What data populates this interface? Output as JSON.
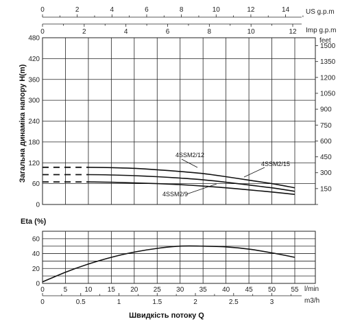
{
  "chart_data": [
    {
      "type": "line",
      "ylabel": "Загальна динаміка напору H(m)",
      "xlabel": "Швидкість потоку Q",
      "ylim": [
        0,
        480
      ],
      "yticks": [
        "0",
        "60",
        "120",
        "180",
        "240",
        "300",
        "360",
        "420",
        "480"
      ],
      "y_feet": {
        "unit": "feet",
        "ticks": [
          "150",
          "300",
          "450",
          "600",
          "750",
          "900",
          "1050",
          "1200",
          "1350",
          "1500"
        ]
      },
      "top_axis_us": {
        "unit": "US g.p.m",
        "ticks": [
          "0",
          "2",
          "4",
          "6",
          "8",
          "10",
          "12",
          "14"
        ]
      },
      "top_axis_imp": {
        "unit": "Imp g.p.m",
        "ticks": [
          "0",
          "2",
          "4",
          "6",
          "8",
          "10",
          "12"
        ]
      },
      "x_lmin": {
        "unit": "l/min",
        "ticks": [
          "0",
          "5",
          "10",
          "15",
          "20",
          "25",
          "30",
          "35",
          "40",
          "45",
          "50",
          "55"
        ],
        "xlim": [
          0,
          55
        ]
      },
      "x_m3h": {
        "unit": "m3/h",
        "ticks": [
          "0",
          "0.5",
          "1",
          "1.5",
          "2",
          "2.5",
          "3"
        ]
      },
      "series": [
        {
          "name": "4SSM2/15",
          "dashed_until": 10,
          "x": [
            0,
            10,
            15,
            20,
            25,
            30,
            35,
            40,
            45,
            50,
            55
          ],
          "values": [
            107,
            107,
            106,
            104,
            100,
            95,
            89,
            80,
            70,
            60,
            48
          ]
        },
        {
          "name": "4SSM2/12",
          "dashed_until": 10,
          "x": [
            0,
            10,
            15,
            20,
            25,
            30,
            35,
            40,
            45,
            50,
            55
          ],
          "values": [
            86,
            86,
            85,
            83,
            80,
            76,
            71,
            64,
            56,
            48,
            38
          ]
        },
        {
          "name": "4SSM2/9",
          "dashed_until": 10,
          "x": [
            0,
            10,
            15,
            20,
            25,
            30,
            35,
            40,
            45,
            50,
            55
          ],
          "values": [
            65,
            65,
            64,
            62,
            60,
            57,
            53,
            48,
            42,
            36,
            29
          ]
        }
      ]
    },
    {
      "type": "line",
      "ylabel": "Eta (%)",
      "ylim": [
        0,
        60
      ],
      "yticks": [
        "0",
        "20",
        "40",
        "60"
      ],
      "series": [
        {
          "name": "",
          "x": [
            0,
            5,
            10,
            15,
            20,
            25,
            30,
            35,
            40,
            45,
            50,
            55
          ],
          "values": [
            2,
            15,
            26,
            35,
            42,
            47,
            50,
            50,
            49,
            46,
            41,
            35
          ]
        }
      ]
    }
  ]
}
